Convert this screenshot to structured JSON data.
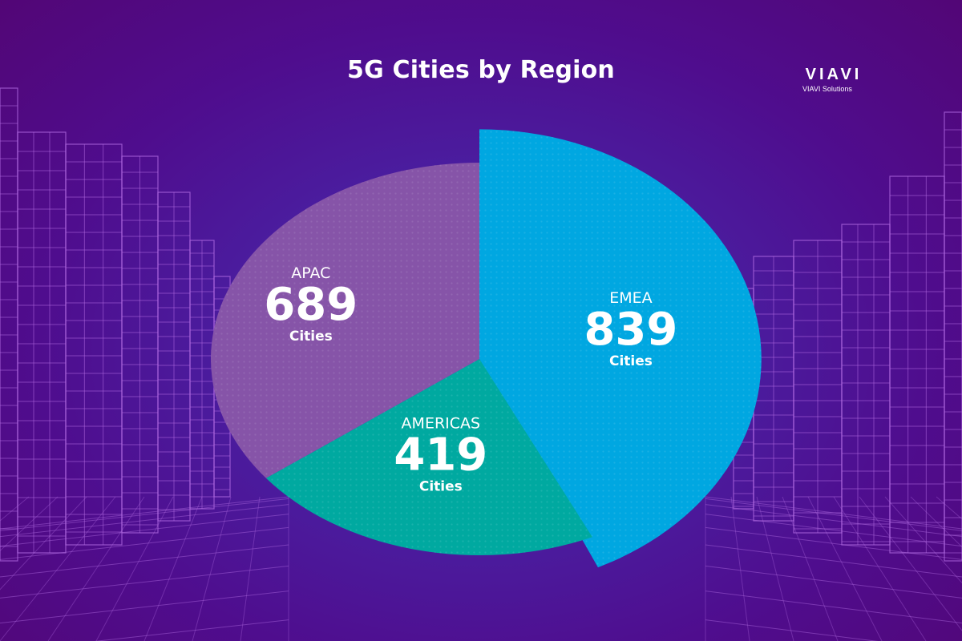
{
  "title": "5G Cities by Region",
  "logo": {
    "wordmark": "VIAVI",
    "subtitle": "VIAVI Solutions"
  },
  "colors": {
    "background": "#4f0d8e",
    "wireframe": "#b06ae0",
    "emea": "#00a7e1",
    "americas": "#00a9a0",
    "apac": "#8654a8"
  },
  "chart_data": {
    "type": "pie",
    "title": "5G Cities by Region",
    "slices": [
      {
        "label": "EMEA",
        "value": 839,
        "unit": "Cities",
        "color": "#00a7e1",
        "exploded": true
      },
      {
        "label": "AMERICAS",
        "value": 419,
        "unit": "Cities",
        "color": "#00a9a0",
        "exploded": false
      },
      {
        "label": "APAC",
        "value": 689,
        "unit": "Cities",
        "color": "#8654a8",
        "exploded": false
      }
    ],
    "legend": "none",
    "grid": false
  }
}
